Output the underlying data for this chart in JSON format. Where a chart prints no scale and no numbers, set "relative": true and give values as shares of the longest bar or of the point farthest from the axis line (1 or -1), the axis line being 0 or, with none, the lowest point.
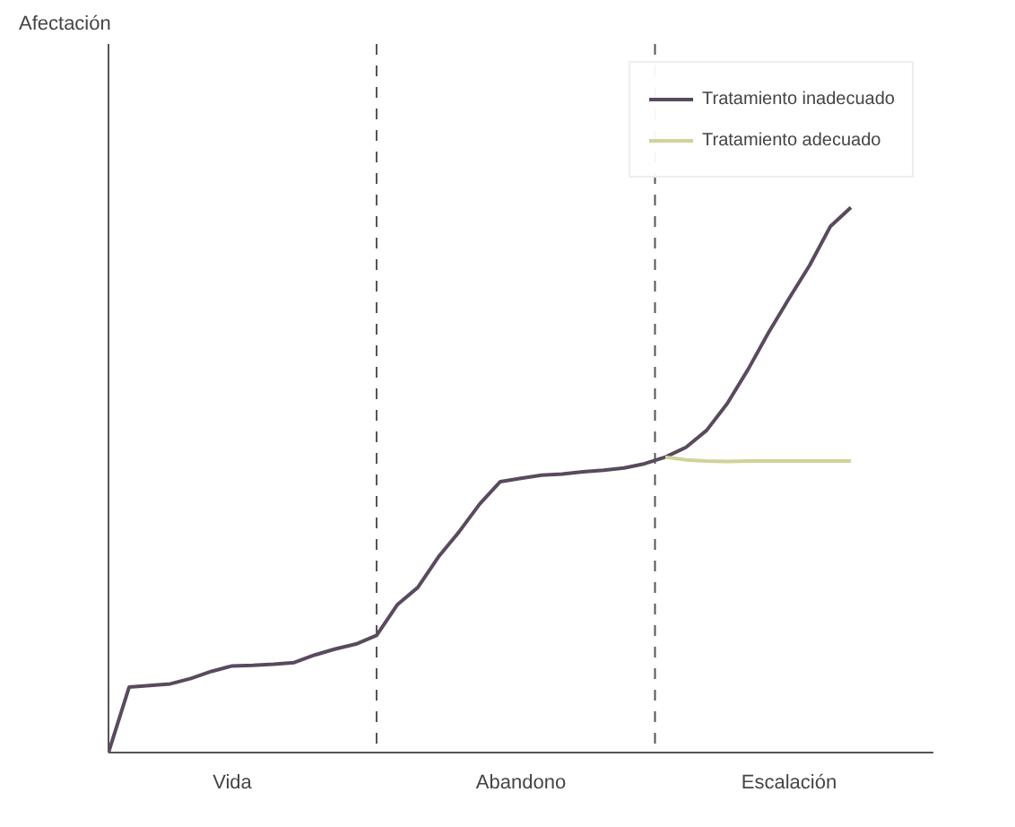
{
  "chart_data": {
    "type": "line",
    "relative": true,
    "annotations": [
      "Afectación"
    ],
    "categories": [
      null,
      null,
      null,
      null,
      null,
      null,
      "Vida",
      null,
      null,
      null,
      null,
      null,
      null,
      null,
      null,
      null,
      null,
      null,
      null,
      null,
      "Abandono",
      null,
      null,
      null,
      null,
      null,
      null,
      null,
      null,
      null,
      null,
      null,
      null,
      "Escalación",
      null,
      null,
      null
    ],
    "series": [
      {
        "name": "Tratamiento inadecuado",
        "color": "#5a4a5e",
        "values": [
          0,
          0.12,
          0.123,
          0.126,
          0.136,
          0.149,
          0.159,
          0.16,
          0.162,
          0.165,
          0.179,
          0.19,
          0.199,
          0.215,
          0.271,
          0.303,
          0.359,
          0.405,
          0.456,
          0.497,
          0.503,
          0.509,
          0.511,
          0.515,
          0.518,
          0.522,
          0.53,
          0.542,
          0.56,
          0.591,
          0.64,
          0.702,
          0.77,
          0.833,
          0.894,
          0.965,
          1.0
        ]
      },
      {
        "name": "Tratamiento adecuado",
        "color": "#cfd39a",
        "values": [
          null,
          null,
          null,
          null,
          null,
          null,
          null,
          null,
          null,
          null,
          null,
          null,
          null,
          null,
          null,
          null,
          null,
          null,
          null,
          null,
          null,
          null,
          null,
          null,
          null,
          null,
          null,
          0.542,
          0.537,
          0.535,
          0.534,
          0.535,
          0.535,
          0.535,
          0.535,
          0.535,
          0.535
        ]
      }
    ],
    "legend": "top right",
    "grid": "x",
    "line_style": "solid"
  }
}
